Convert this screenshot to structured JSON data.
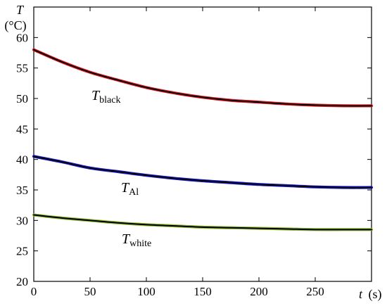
{
  "chart_data": {
    "type": "line",
    "ylabel_symbol": "T",
    "ylabel_unit": "(°C)",
    "xlabel_symbol": "t",
    "xlabel_unit": "(s)",
    "xlim": [
      0,
      300
    ],
    "ylim": [
      20,
      65
    ],
    "xticks": [
      0,
      50,
      100,
      150,
      200,
      250
    ],
    "yticks": [
      20,
      25,
      30,
      35,
      40,
      45,
      50,
      55,
      60
    ],
    "grid": false,
    "series": [
      {
        "name_main": "T",
        "name_sub": "black",
        "measured_color": "#e8141e",
        "fit_color": "#000000",
        "x": [
          0,
          25,
          50,
          75,
          100,
          125,
          150,
          175,
          200,
          225,
          250,
          275,
          300
        ],
        "y": [
          58.0,
          56.0,
          54.3,
          53.0,
          51.8,
          50.9,
          50.2,
          49.7,
          49.4,
          49.1,
          48.9,
          48.8,
          48.8
        ]
      },
      {
        "name_main": "T",
        "name_sub": "Al",
        "measured_color": "#1a1ad6",
        "fit_color": "#000000",
        "x": [
          0,
          25,
          50,
          75,
          100,
          125,
          150,
          175,
          200,
          225,
          250,
          275,
          300
        ],
        "y": [
          40.5,
          39.6,
          38.6,
          38.0,
          37.4,
          36.9,
          36.5,
          36.2,
          35.9,
          35.7,
          35.5,
          35.4,
          35.4
        ]
      },
      {
        "name_main": "T",
        "name_sub": "white",
        "measured_color": "#8dba2e",
        "fit_color": "#000000",
        "x": [
          0,
          25,
          50,
          75,
          100,
          125,
          150,
          175,
          200,
          225,
          250,
          275,
          300
        ],
        "y": [
          30.9,
          30.4,
          30.0,
          29.6,
          29.3,
          29.1,
          28.9,
          28.8,
          28.7,
          28.6,
          28.5,
          28.5,
          28.5
        ]
      }
    ]
  }
}
